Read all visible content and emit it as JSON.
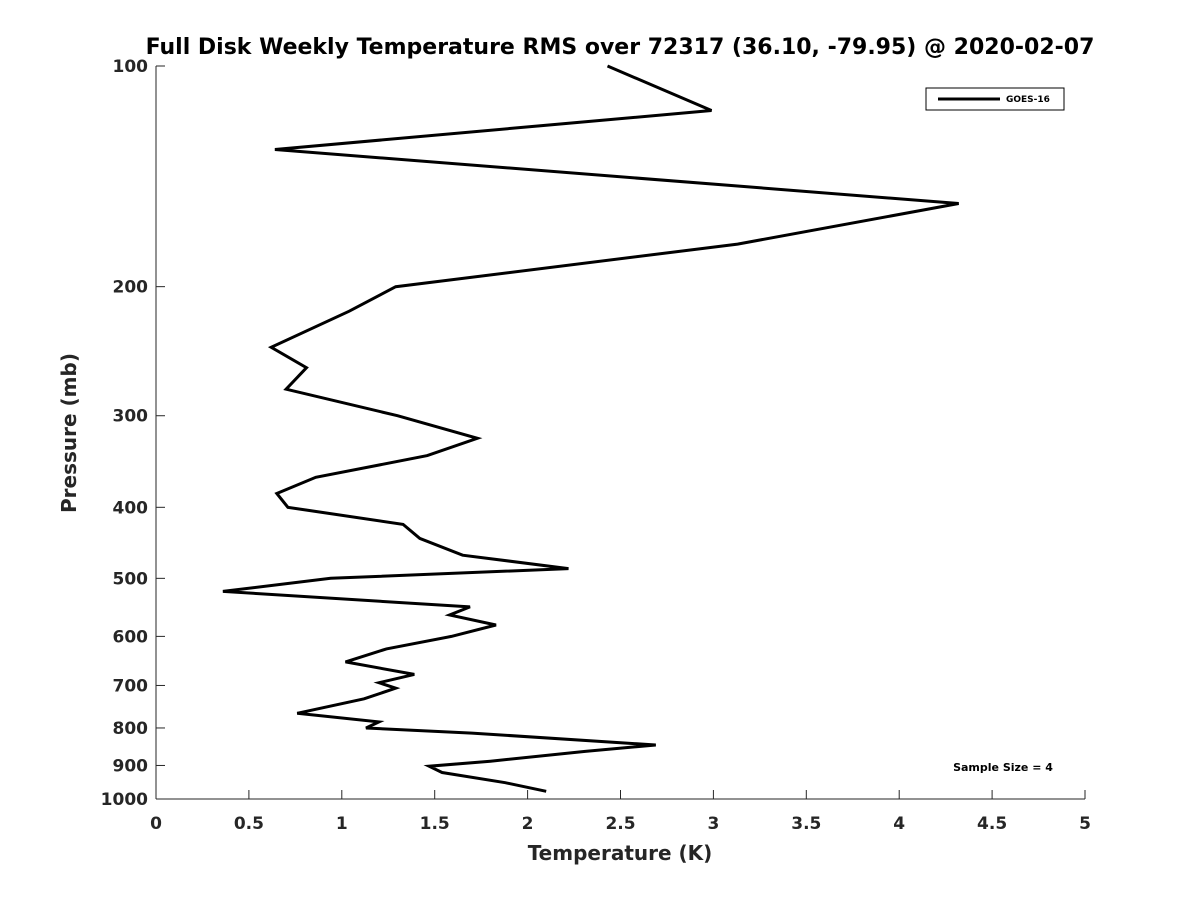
{
  "chart_data": {
    "type": "line",
    "title": "Full Disk Weekly Temperature RMS over 72317 (36.10, -79.95) @ 2020-02-07",
    "xlabel": "Temperature (K)",
    "ylabel": "Pressure (mb)",
    "xlim": [
      0,
      5
    ],
    "ylim": [
      1000,
      100
    ],
    "y_scale": "log",
    "y_reversed": true,
    "x_ticks": [
      "0",
      "0.5",
      "1",
      "1.5",
      "2",
      "2.5",
      "3",
      "3.5",
      "4",
      "4.5",
      "5"
    ],
    "y_ticks": [
      "100",
      "200",
      "300",
      "400",
      "500",
      "600",
      "700",
      "800",
      "900",
      "1000"
    ],
    "legend": {
      "placement": "top-right",
      "entries": [
        "GOES-16"
      ]
    },
    "annotation": "Sample Size = 4",
    "grid": false,
    "series": [
      {
        "name": "GOES-16",
        "color": "#000000",
        "points": [
          [
            2.43,
            100
          ],
          [
            2.99,
            115
          ],
          [
            0.64,
            130
          ],
          [
            4.32,
            154
          ],
          [
            3.13,
            175
          ],
          [
            1.29,
            200
          ],
          [
            1.04,
            216
          ],
          [
            0.62,
            242
          ],
          [
            0.81,
            258
          ],
          [
            0.7,
            276
          ],
          [
            1.3,
            300
          ],
          [
            1.73,
            322
          ],
          [
            1.46,
            340
          ],
          [
            0.86,
            364
          ],
          [
            0.65,
            383
          ],
          [
            0.71,
            400
          ],
          [
            1.33,
            422
          ],
          [
            1.42,
            441
          ],
          [
            1.65,
            465
          ],
          [
            2.22,
            485
          ],
          [
            0.94,
            500
          ],
          [
            0.36,
            521
          ],
          [
            1.69,
            547
          ],
          [
            1.58,
            561
          ],
          [
            1.83,
            579
          ],
          [
            1.59,
            600
          ],
          [
            1.24,
            624
          ],
          [
            1.02,
            650
          ],
          [
            1.39,
            676
          ],
          [
            1.2,
            694
          ],
          [
            1.29,
            706
          ],
          [
            1.12,
            730
          ],
          [
            0.76,
            764
          ],
          [
            1.2,
            785
          ],
          [
            1.13,
            800
          ],
          [
            1.7,
            813
          ],
          [
            2.69,
            844
          ],
          [
            2.31,
            861
          ],
          [
            1.8,
            888
          ],
          [
            1.47,
            902
          ],
          [
            1.54,
            920
          ],
          [
            1.88,
            950
          ],
          [
            2.1,
            976
          ]
        ]
      }
    ]
  }
}
